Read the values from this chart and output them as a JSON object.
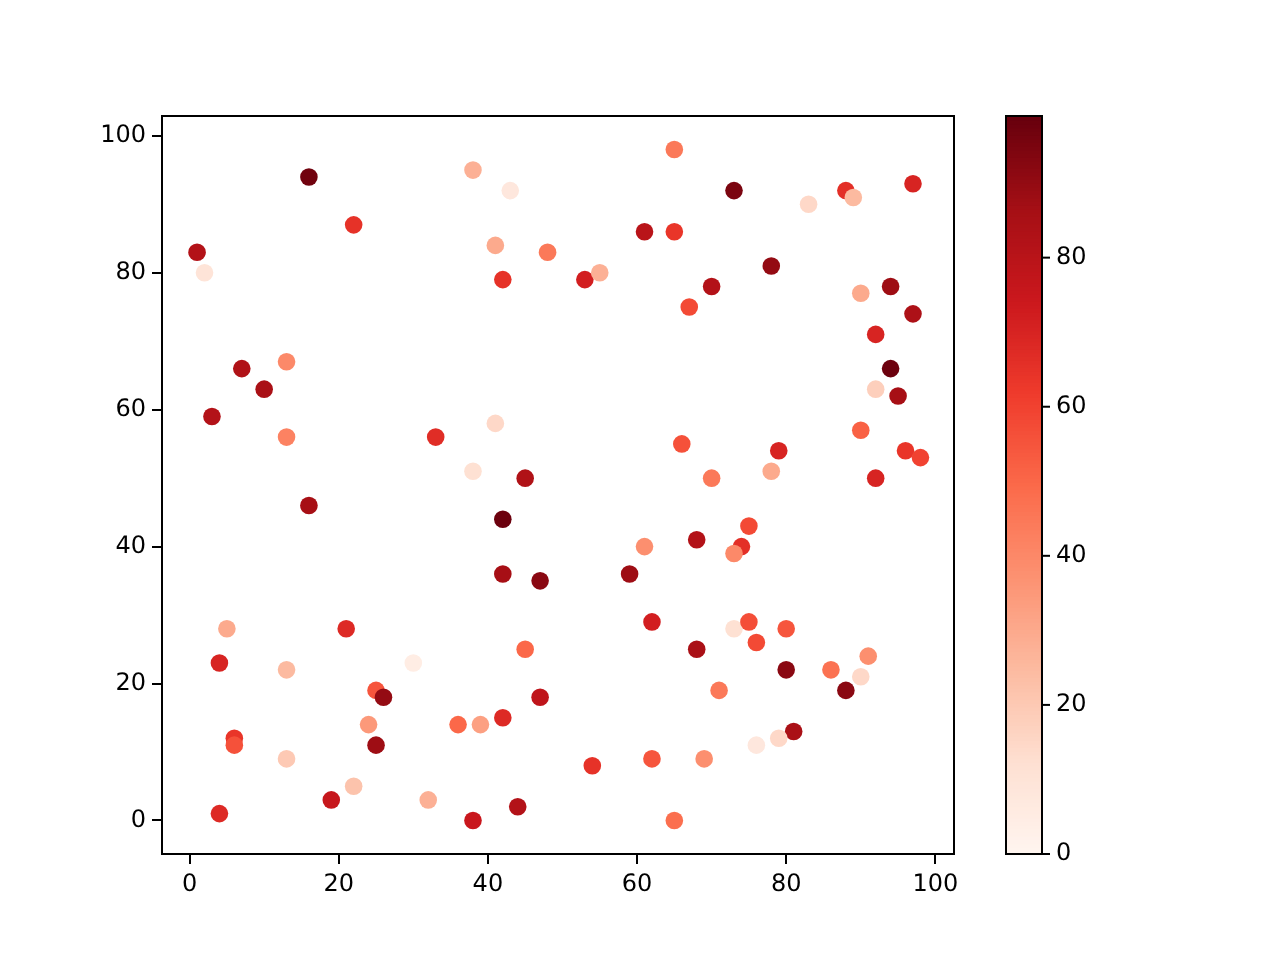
{
  "chart_data": {
    "type": "scatter",
    "marker": "circle",
    "x": [
      16,
      22,
      1,
      2,
      38,
      43,
      41,
      48,
      42,
      7,
      13,
      10,
      3,
      13,
      33,
      41,
      38,
      45,
      65,
      73,
      83,
      88,
      89,
      97,
      61,
      65,
      53,
      55,
      70,
      78,
      67,
      90,
      94,
      97,
      92,
      94,
      92,
      95,
      66,
      79,
      78,
      70,
      90,
      96,
      98,
      92,
      16,
      42,
      42,
      47,
      5,
      21,
      4,
      13,
      30,
      45,
      25,
      26,
      47,
      6,
      6,
      24,
      25,
      36,
      39,
      42,
      13,
      22,
      19,
      32,
      4,
      38,
      44,
      75,
      68,
      61,
      74,
      73,
      59,
      62,
      73,
      75,
      80,
      76,
      68,
      91,
      80,
      86,
      90,
      88,
      71,
      81,
      76,
      79,
      54,
      62,
      69,
      65
    ],
    "values": [
      94,
      87,
      83,
      80,
      95,
      92,
      84,
      83,
      79,
      66,
      67,
      63,
      59,
      56,
      56,
      58,
      51,
      50,
      98,
      92,
      90,
      92,
      91,
      93,
      86,
      86,
      79,
      80,
      78,
      81,
      75,
      77,
      78,
      74,
      71,
      66,
      63,
      62,
      55,
      54,
      51,
      50,
      57,
      54,
      53,
      50,
      46,
      44,
      36,
      35,
      28,
      28,
      23,
      22,
      23,
      25,
      19,
      18,
      18,
      12,
      11,
      14,
      11,
      14,
      14,
      15,
      9,
      5,
      3,
      3,
      1,
      0,
      2,
      43,
      41,
      40,
      40,
      39,
      36,
      29,
      28,
      29,
      28,
      26,
      25,
      24,
      22,
      22,
      21,
      19,
      19,
      13,
      11,
      12,
      8,
      9,
      9,
      0
    ],
    "cvalues": [
      97,
      65,
      82,
      10,
      28,
      8,
      30,
      45,
      65,
      83,
      40,
      85,
      82,
      42,
      67,
      15,
      12,
      83,
      45,
      95,
      15,
      66,
      25,
      70,
      80,
      64,
      72,
      28,
      82,
      90,
      58,
      30,
      88,
      84,
      70,
      98,
      18,
      86,
      56,
      70,
      30,
      45,
      52,
      64,
      60,
      70,
      86,
      98,
      86,
      92,
      30,
      68,
      70,
      25,
      5,
      50,
      55,
      90,
      78,
      64,
      56,
      35,
      88,
      50,
      33,
      68,
      20,
      22,
      76,
      28,
      68,
      75,
      82,
      58,
      82,
      38,
      66,
      40,
      88,
      72,
      12,
      57,
      55,
      58,
      85,
      38,
      92,
      47,
      15,
      92,
      45,
      85,
      8,
      15,
      65,
      55,
      38,
      48
    ],
    "xlim": [
      -3.7,
      102.5
    ],
    "ylim": [
      -4.9,
      102.9
    ],
    "xticks": [
      0,
      20,
      40,
      60,
      80,
      100
    ],
    "yticks": [
      0,
      20,
      40,
      60,
      80,
      100
    ],
    "clim": [
      0,
      99
    ],
    "cticks": [
      0,
      20,
      40,
      60,
      80
    ]
  }
}
